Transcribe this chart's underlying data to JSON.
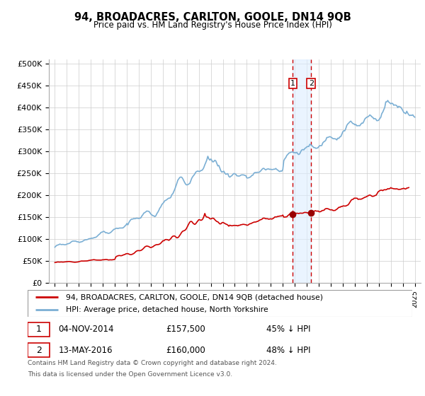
{
  "title": "94, BROADACRES, CARLTON, GOOLE, DN14 9QB",
  "subtitle": "Price paid vs. HM Land Registry's House Price Index (HPI)",
  "legend_line1": "94, BROADACRES, CARLTON, GOOLE, DN14 9QB (detached house)",
  "legend_line2": "HPI: Average price, detached house, North Yorkshire",
  "footnote1": "Contains HM Land Registry data © Crown copyright and database right 2024.",
  "footnote2": "This data is licensed under the Open Government Licence v3.0.",
  "transaction1_date": "04-NOV-2014",
  "transaction1_price": "£157,500",
  "transaction1_label": "1",
  "transaction1_pct": "45% ↓ HPI",
  "transaction2_date": "13-MAY-2016",
  "transaction2_price": "£160,000",
  "transaction2_label": "2",
  "transaction2_pct": "48% ↓ HPI",
  "hpi_color": "#7bafd4",
  "price_color": "#cc0000",
  "marker_color": "#990000",
  "vline_color": "#cc0000",
  "vshade_color": "#ddeeff",
  "yticks": [
    0,
    50000,
    100000,
    150000,
    200000,
    250000,
    300000,
    350000,
    400000,
    450000,
    500000
  ],
  "ytick_labels": [
    "£0",
    "£50K",
    "£100K",
    "£150K",
    "£200K",
    "£250K",
    "£300K",
    "£350K",
    "£400K",
    "£450K",
    "£500K"
  ],
  "t1_x": 2014.84,
  "t1_y": 157500,
  "t2_x": 2016.36,
  "t2_y": 160000,
  "ylim_max": 510000,
  "xmin": 1994.5,
  "xmax": 2025.5
}
